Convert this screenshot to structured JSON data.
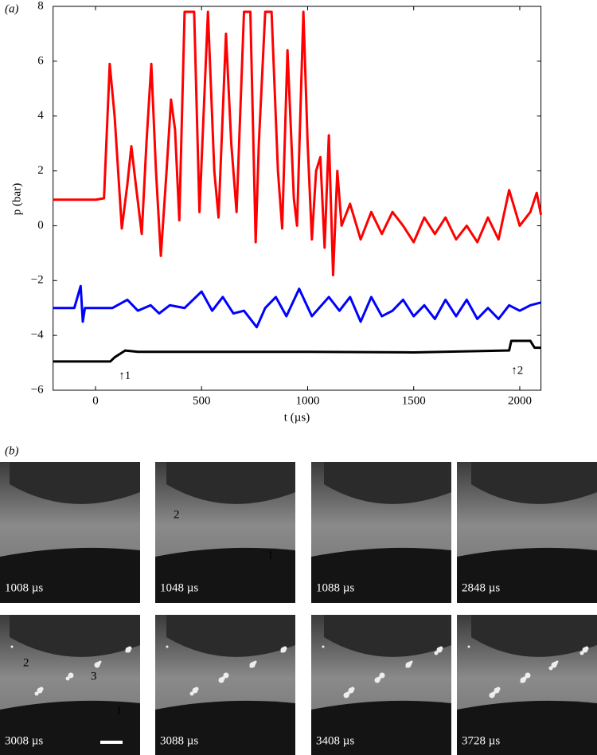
{
  "chart_data": {
    "type": "line",
    "panel_label": "(a)",
    "xlabel": "t (µs)",
    "ylabel": "p (bar)",
    "xlim": [
      -200,
      2100
    ],
    "ylim": [
      -6,
      8
    ],
    "xticks": [
      0,
      500,
      1000,
      1500,
      2000
    ],
    "yticks": [
      {
        "value": -6,
        "label": "−6"
      },
      {
        "value": -4,
        "label": "−4"
      },
      {
        "value": -2,
        "label": "−2"
      },
      0,
      2,
      4,
      6,
      8
    ],
    "series": [
      {
        "color": "#ff0000",
        "x": [
          -200,
          -100,
          0,
          40,
          67,
          90,
          124,
          150,
          169,
          190,
          218,
          240,
          263,
          285,
          308,
          335,
          356,
          375,
          395,
          420,
          465,
          490,
          530,
          560,
          580,
          615,
          640,
          665,
          700,
          730,
          755,
          770,
          800,
          830,
          860,
          880,
          905,
          935,
          950,
          980,
          1000,
          1020,
          1040,
          1060,
          1080,
          1100,
          1120,
          1140,
          1160,
          1200,
          1250,
          1300,
          1350,
          1400,
          1450,
          1500,
          1550,
          1600,
          1650,
          1700,
          1750,
          1800,
          1850,
          1900,
          1950,
          2000,
          2050,
          2080,
          2100
        ],
        "values": [
          0.95,
          0.95,
          0.95,
          1.0,
          5.9,
          4,
          -0.1,
          1.5,
          2.9,
          1.5,
          -0.3,
          3,
          5.9,
          2,
          -1.1,
          2,
          4.6,
          3.5,
          0.2,
          7.8,
          7.8,
          0.5,
          7.8,
          2,
          0.3,
          7,
          3,
          0.5,
          7.8,
          7.8,
          -0.6,
          3,
          7.8,
          7.8,
          2,
          -0.1,
          6.4,
          1,
          0,
          7.8,
          3,
          -0.5,
          2,
          2.5,
          -0.8,
          3.3,
          -1.8,
          2,
          0,
          0.8,
          -0.5,
          0.5,
          -0.3,
          0.5,
          0,
          -0.6,
          0.3,
          -0.3,
          0.3,
          -0.5,
          0,
          -0.6,
          0.3,
          -0.5,
          1.3,
          0,
          0.5,
          1.2,
          0.4
        ]
      },
      {
        "color": "#0000ff",
        "x": [
          -200,
          -100,
          -70,
          -60,
          -50,
          80,
          150,
          200,
          260,
          300,
          350,
          420,
          500,
          550,
          600,
          650,
          700,
          760,
          800,
          850,
          900,
          960,
          1020,
          1100,
          1150,
          1200,
          1250,
          1300,
          1350,
          1400,
          1450,
          1500,
          1550,
          1600,
          1650,
          1700,
          1750,
          1800,
          1850,
          1900,
          1950,
          2000,
          2050,
          2100
        ],
        "values": [
          -3,
          -3,
          -2.2,
          -3.5,
          -3,
          -3,
          -2.7,
          -3.1,
          -2.9,
          -3.2,
          -2.9,
          -3,
          -2.4,
          -3.1,
          -2.6,
          -3.2,
          -3.1,
          -3.7,
          -3,
          -2.6,
          -3.3,
          -2.3,
          -3.3,
          -2.6,
          -3.1,
          -2.6,
          -3.5,
          -2.6,
          -3.3,
          -3.1,
          -2.7,
          -3.3,
          -2.9,
          -3.4,
          -2.7,
          -3.3,
          -2.7,
          -3.4,
          -3,
          -3.4,
          -2.9,
          -3.1,
          -2.9,
          -2.8
        ]
      },
      {
        "color": "#000000",
        "x": [
          -200,
          70,
          90,
          110,
          140,
          200,
          500,
          1000,
          1500,
          1950,
          1960,
          2050,
          2070,
          2100
        ],
        "values": [
          -4.95,
          -4.95,
          -4.8,
          -4.7,
          -4.55,
          -4.6,
          -4.6,
          -4.6,
          -4.62,
          -4.55,
          -4.2,
          -4.2,
          -4.45,
          -4.45
        ]
      }
    ],
    "annotations": [
      {
        "text": "↑1",
        "x": 110,
        "y": -5.5
      },
      {
        "text": "↑2",
        "x": 1960,
        "y": -5.3
      }
    ]
  },
  "panel_b": {
    "label": "(b)",
    "frames": [
      {
        "time": "1008 µs",
        "markers": []
      },
      {
        "time": "1048 µs",
        "markers": [
          "2",
          "1"
        ]
      },
      {
        "time": "1088 µs",
        "markers": []
      },
      {
        "time": "2848 µs",
        "markers": []
      },
      {
        "time": "3008 µs",
        "markers": [
          "2",
          "3",
          "1"
        ]
      },
      {
        "time": "3088 µs",
        "markers": []
      },
      {
        "time": "3408 µs",
        "markers": []
      },
      {
        "time": "3728 µs",
        "markers": []
      }
    ]
  }
}
